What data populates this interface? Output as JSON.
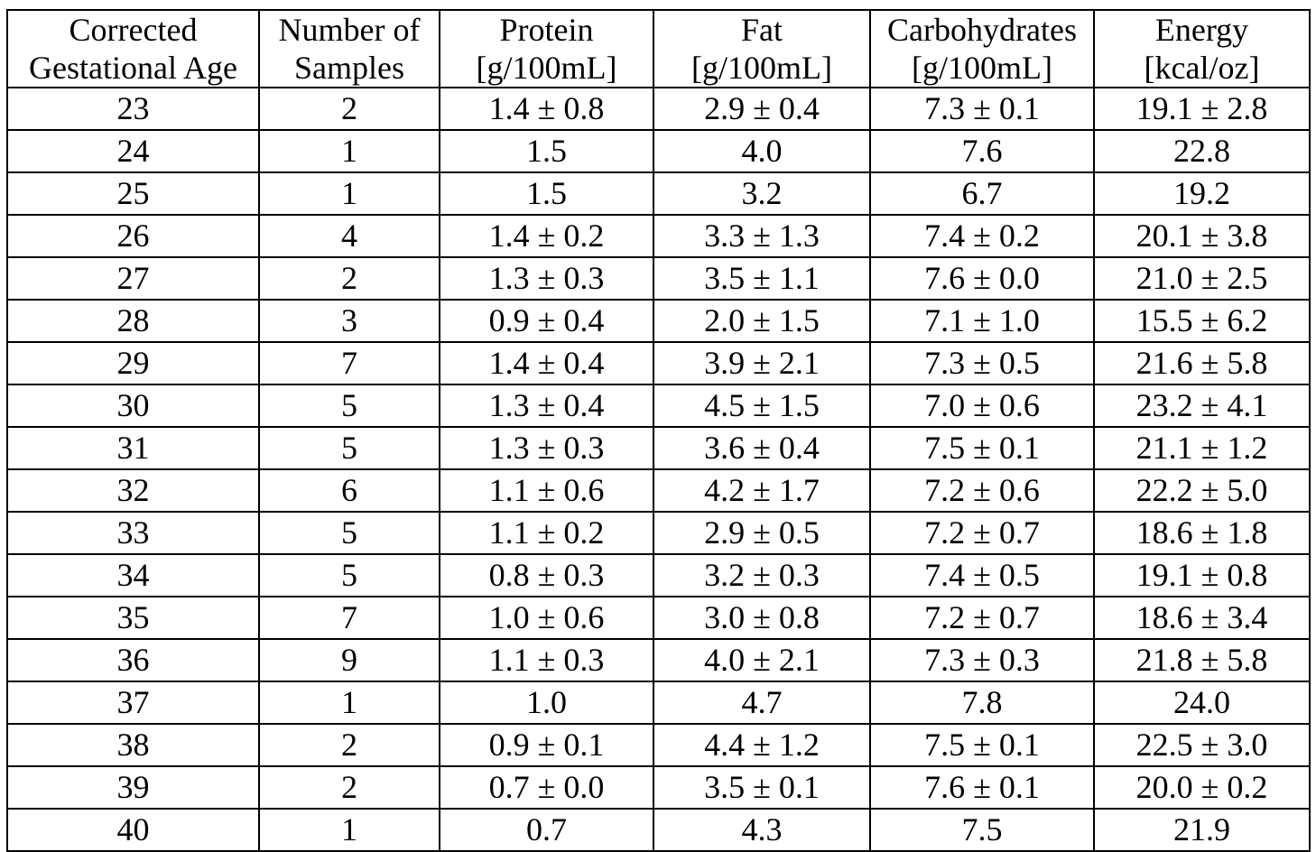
{
  "table": {
    "columns": [
      {
        "line1": "Corrected",
        "line2": "Gestational Age"
      },
      {
        "line1": "Number of",
        "line2": "Samples"
      },
      {
        "line1": "Protein",
        "line2": "[g/100mL]"
      },
      {
        "line1": "Fat",
        "line2": "[g/100mL]"
      },
      {
        "line1": "Carbohydrates",
        "line2": "[g/100mL]"
      },
      {
        "line1": "Energy",
        "line2": "[kcal/oz]"
      }
    ],
    "rows": [
      [
        "23",
        "2",
        "1.4 ± 0.8",
        "2.9 ± 0.4",
        "7.3 ± 0.1",
        "19.1 ± 2.8"
      ],
      [
        "24",
        "1",
        "1.5",
        "4.0",
        "7.6",
        "22.8"
      ],
      [
        "25",
        "1",
        "1.5",
        "3.2",
        "6.7",
        "19.2"
      ],
      [
        "26",
        "4",
        "1.4 ± 0.2",
        "3.3 ± 1.3",
        "7.4 ± 0.2",
        "20.1 ± 3.8"
      ],
      [
        "27",
        "2",
        "1.3 ± 0.3",
        "3.5 ± 1.1",
        "7.6 ± 0.0",
        "21.0 ± 2.5"
      ],
      [
        "28",
        "3",
        "0.9 ± 0.4",
        "2.0 ± 1.5",
        "7.1 ± 1.0",
        "15.5 ± 6.2"
      ],
      [
        "29",
        "7",
        "1.4 ± 0.4",
        "3.9 ± 2.1",
        "7.3 ± 0.5",
        "21.6 ± 5.8"
      ],
      [
        "30",
        "5",
        "1.3 ± 0.4",
        "4.5 ± 1.5",
        "7.0 ± 0.6",
        "23.2 ± 4.1"
      ],
      [
        "31",
        "5",
        "1.3 ± 0.3",
        "3.6 ± 0.4",
        "7.5 ± 0.1",
        "21.1 ± 1.2"
      ],
      [
        "32",
        "6",
        "1.1 ± 0.6",
        "4.2 ± 1.7",
        "7.2 ± 0.6",
        "22.2 ± 5.0"
      ],
      [
        "33",
        "5",
        "1.1 ± 0.2",
        "2.9 ± 0.5",
        "7.2 ± 0.7",
        "18.6 ± 1.8"
      ],
      [
        "34",
        "5",
        "0.8 ± 0.3",
        "3.2 ± 0.3",
        "7.4 ± 0.5",
        "19.1 ± 0.8"
      ],
      [
        "35",
        "7",
        "1.0 ± 0.6",
        "3.0 ± 0.8",
        "7.2 ± 0.7",
        "18.6 ± 3.4"
      ],
      [
        "36",
        "9",
        "1.1 ± 0.3",
        "4.0 ± 2.1",
        "7.3 ± 0.3",
        "21.8 ± 5.8"
      ],
      [
        "37",
        "1",
        "1.0",
        "4.7",
        "7.8",
        "24.0"
      ],
      [
        "38",
        "2",
        "0.9 ± 0.1",
        "4.4 ± 1.2",
        "7.5 ± 0.1",
        "22.5 ± 3.0"
      ],
      [
        "39",
        "2",
        "0.7 ± 0.0",
        "3.5 ± 0.1",
        "7.6 ± 0.1",
        "20.0 ± 0.2"
      ],
      [
        "40",
        "1",
        "0.7",
        "4.3",
        "7.5",
        "21.9"
      ]
    ]
  }
}
